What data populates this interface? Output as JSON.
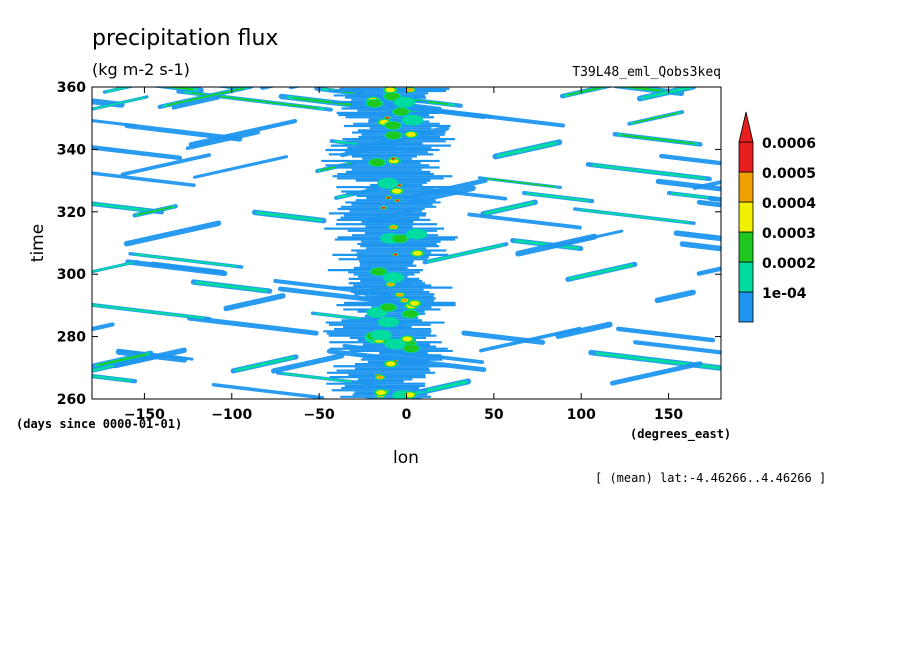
{
  "chart_data": {
    "type": "heatmap",
    "title": "precipitation flux",
    "units": "(kg m-2 s-1)",
    "experiment": "T39L48_eml_Qobs3keq",
    "xlabel": "lon",
    "ylabel": "time",
    "x_units": "(degrees_east)",
    "y_units": "(days since 0000-01-01)",
    "xlim": [
      -180,
      180
    ],
    "ylim": [
      260,
      360
    ],
    "x_ticks": [
      -150,
      -100,
      -50,
      0,
      50,
      100,
      150
    ],
    "x_tick_labels": [
      "−150",
      "−100",
      "−50",
      "0",
      "50",
      "100",
      "150"
    ],
    "y_ticks": [
      260,
      280,
      300,
      320,
      340,
      360
    ],
    "y_tick_labels": [
      "260",
      "280",
      "300",
      "320",
      "340",
      "360"
    ],
    "levels": [
      0.0001,
      0.0002,
      0.0003,
      0.0004,
      0.0005,
      0.0006
    ],
    "level_labels": [
      "1e-04",
      "0.0002",
      "0.0003",
      "0.0004",
      "0.0005",
      "0.0006"
    ],
    "level_colors": [
      "#1e96f0",
      "#00dca0",
      "#1ec81e",
      "#f0f000",
      "#f0a000",
      "#e61e1e"
    ],
    "colorbar_extend": "max",
    "grid": false,
    "footer": "[ (mean) lat:-4.46266..4.46266 ]",
    "features": {
      "stationary_band": {
        "center_lon": -7,
        "half_width_deg": 30,
        "time_start": 260,
        "time_end": 360
      },
      "westward_streaks": {
        "typical_lon_per_day": -15,
        "typical_length_deg": 60
      },
      "eastward_streaks": {
        "typical_lon_per_day": 8,
        "typical_length_deg": 40
      }
    }
  }
}
